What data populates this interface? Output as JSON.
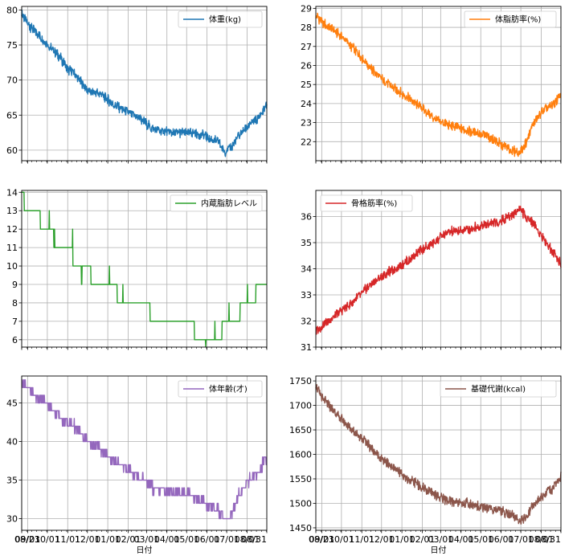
{
  "x_ticks": [
    "08/23",
    "09/01",
    "10/01",
    "11/01",
    "12/01",
    "01/01",
    "02/01",
    "03/01",
    "04/01",
    "05/01",
    "06/01",
    "07/01",
    "08/01",
    "08/31"
  ],
  "xlabel": "日付",
  "chart_data": [
    {
      "type": "line",
      "legend": "体重(kg)",
      "legend_loc": "upper-right",
      "color": "#1f77b4",
      "grid": true,
      "ylim": [
        58.5,
        80.5
      ],
      "yticks": [
        60,
        65,
        70,
        75,
        80
      ],
      "series": [
        {
          "name": "体重(kg)",
          "x": [
            0,
            9,
            20,
            40,
            60,
            70,
            80,
            100,
            120,
            140,
            160,
            180,
            200,
            230,
            260,
            280,
            300,
            310,
            320,
            330,
            345,
            360,
            373
          ],
          "values": [
            79.5,
            78.0,
            77.0,
            75.0,
            73.0,
            71.5,
            71.0,
            68.5,
            68.0,
            66.5,
            65.5,
            64.5,
            63.0,
            62.5,
            62.5,
            62.0,
            61.0,
            59.8,
            60.5,
            62.0,
            63.5,
            64.5,
            66.5
          ]
        }
      ]
    },
    {
      "type": "line",
      "legend": "体脂肪率(%)",
      "legend_loc": "upper-right",
      "color": "#ff7f0e",
      "grid": true,
      "ylim": [
        21.0,
        29.1
      ],
      "yticks": [
        22,
        23,
        24,
        25,
        26,
        27,
        28,
        29
      ],
      "series": [
        {
          "name": "体脂肪率(%)",
          "x": [
            0,
            9,
            20,
            40,
            60,
            80,
            100,
            120,
            140,
            160,
            180,
            200,
            230,
            260,
            280,
            300,
            310,
            320,
            330,
            345,
            360,
            373
          ],
          "values": [
            28.6,
            28.3,
            28.0,
            27.5,
            26.8,
            26.0,
            25.3,
            24.8,
            24.3,
            23.8,
            23.2,
            22.9,
            22.6,
            22.3,
            21.9,
            21.5,
            21.4,
            21.9,
            22.9,
            23.6,
            23.9,
            24.5
          ]
        }
      ]
    },
    {
      "type": "line",
      "legend": "内蔵脂肪レベル",
      "legend_loc": "upper-right",
      "color": "#2ca02c",
      "grid": true,
      "ylim": [
        5.6,
        14.1
      ],
      "yticks": [
        6,
        7,
        8,
        9,
        10,
        11,
        12,
        13,
        14
      ],
      "series": [
        {
          "name": "内蔵脂肪レベル",
          "x": [
            0,
            7,
            20,
            35,
            45,
            55,
            70,
            85,
            95,
            115,
            135,
            155,
            180,
            210,
            245,
            280,
            300,
            310,
            325,
            340,
            373
          ],
          "values": [
            14,
            13,
            13,
            12,
            12,
            11,
            11,
            10,
            10,
            9,
            9,
            8,
            8,
            7,
            7,
            6,
            6,
            7,
            7,
            8,
            9
          ]
        }
      ]
    },
    {
      "type": "line",
      "legend": "骨格筋率(%)",
      "legend_loc": "upper-left",
      "color": "#d62728",
      "grid": true,
      "ylim": [
        31.0,
        37.0
      ],
      "yticks": [
        31,
        32,
        33,
        34,
        35,
        36
      ],
      "series": [
        {
          "name": "骨格筋率(%)",
          "x": [
            0,
            9,
            20,
            40,
            60,
            80,
            100,
            120,
            140,
            160,
            180,
            200,
            230,
            260,
            280,
            300,
            310,
            320,
            330,
            345,
            360,
            373
          ],
          "values": [
            31.6,
            31.8,
            32.0,
            32.4,
            32.8,
            33.3,
            33.7,
            34.0,
            34.3,
            34.7,
            35.0,
            35.4,
            35.5,
            35.7,
            35.8,
            36.1,
            36.3,
            36.0,
            35.8,
            35.2,
            34.7,
            34.2
          ]
        }
      ]
    },
    {
      "type": "line",
      "legend": "体年齢(才)",
      "legend_loc": "upper-right",
      "color": "#9467bd",
      "grid": true,
      "ylim": [
        28.5,
        48.5
      ],
      "yticks": [
        30,
        35,
        40,
        45
      ],
      "series": [
        {
          "name": "体年齢(才)",
          "x": [
            0,
            9,
            20,
            40,
            60,
            80,
            100,
            120,
            140,
            160,
            180,
            200,
            230,
            260,
            280,
            300,
            310,
            320,
            330,
            345,
            360,
            373
          ],
          "values": [
            48,
            47,
            46,
            45,
            43,
            42,
            40,
            39,
            37.5,
            36.5,
            35.5,
            34,
            33.5,
            33,
            32,
            31,
            30,
            30.5,
            33,
            35,
            36,
            38
          ]
        }
      ]
    },
    {
      "type": "line",
      "legend": "基礎代謝(kcal)",
      "legend_loc": "upper-right",
      "color": "#8c564b",
      "grid": true,
      "ylim": [
        1445,
        1760
      ],
      "yticks": [
        1450,
        1500,
        1550,
        1600,
        1650,
        1700,
        1750
      ],
      "series": [
        {
          "name": "基礎代謝(kcal)",
          "x": [
            0,
            9,
            20,
            40,
            60,
            80,
            100,
            120,
            140,
            160,
            180,
            200,
            230,
            260,
            280,
            300,
            310,
            320,
            330,
            345,
            360,
            373
          ],
          "values": [
            1740,
            1715,
            1700,
            1670,
            1645,
            1620,
            1590,
            1570,
            1550,
            1535,
            1520,
            1505,
            1500,
            1490,
            1485,
            1475,
            1465,
            1470,
            1495,
            1515,
            1530,
            1555
          ]
        }
      ]
    }
  ]
}
